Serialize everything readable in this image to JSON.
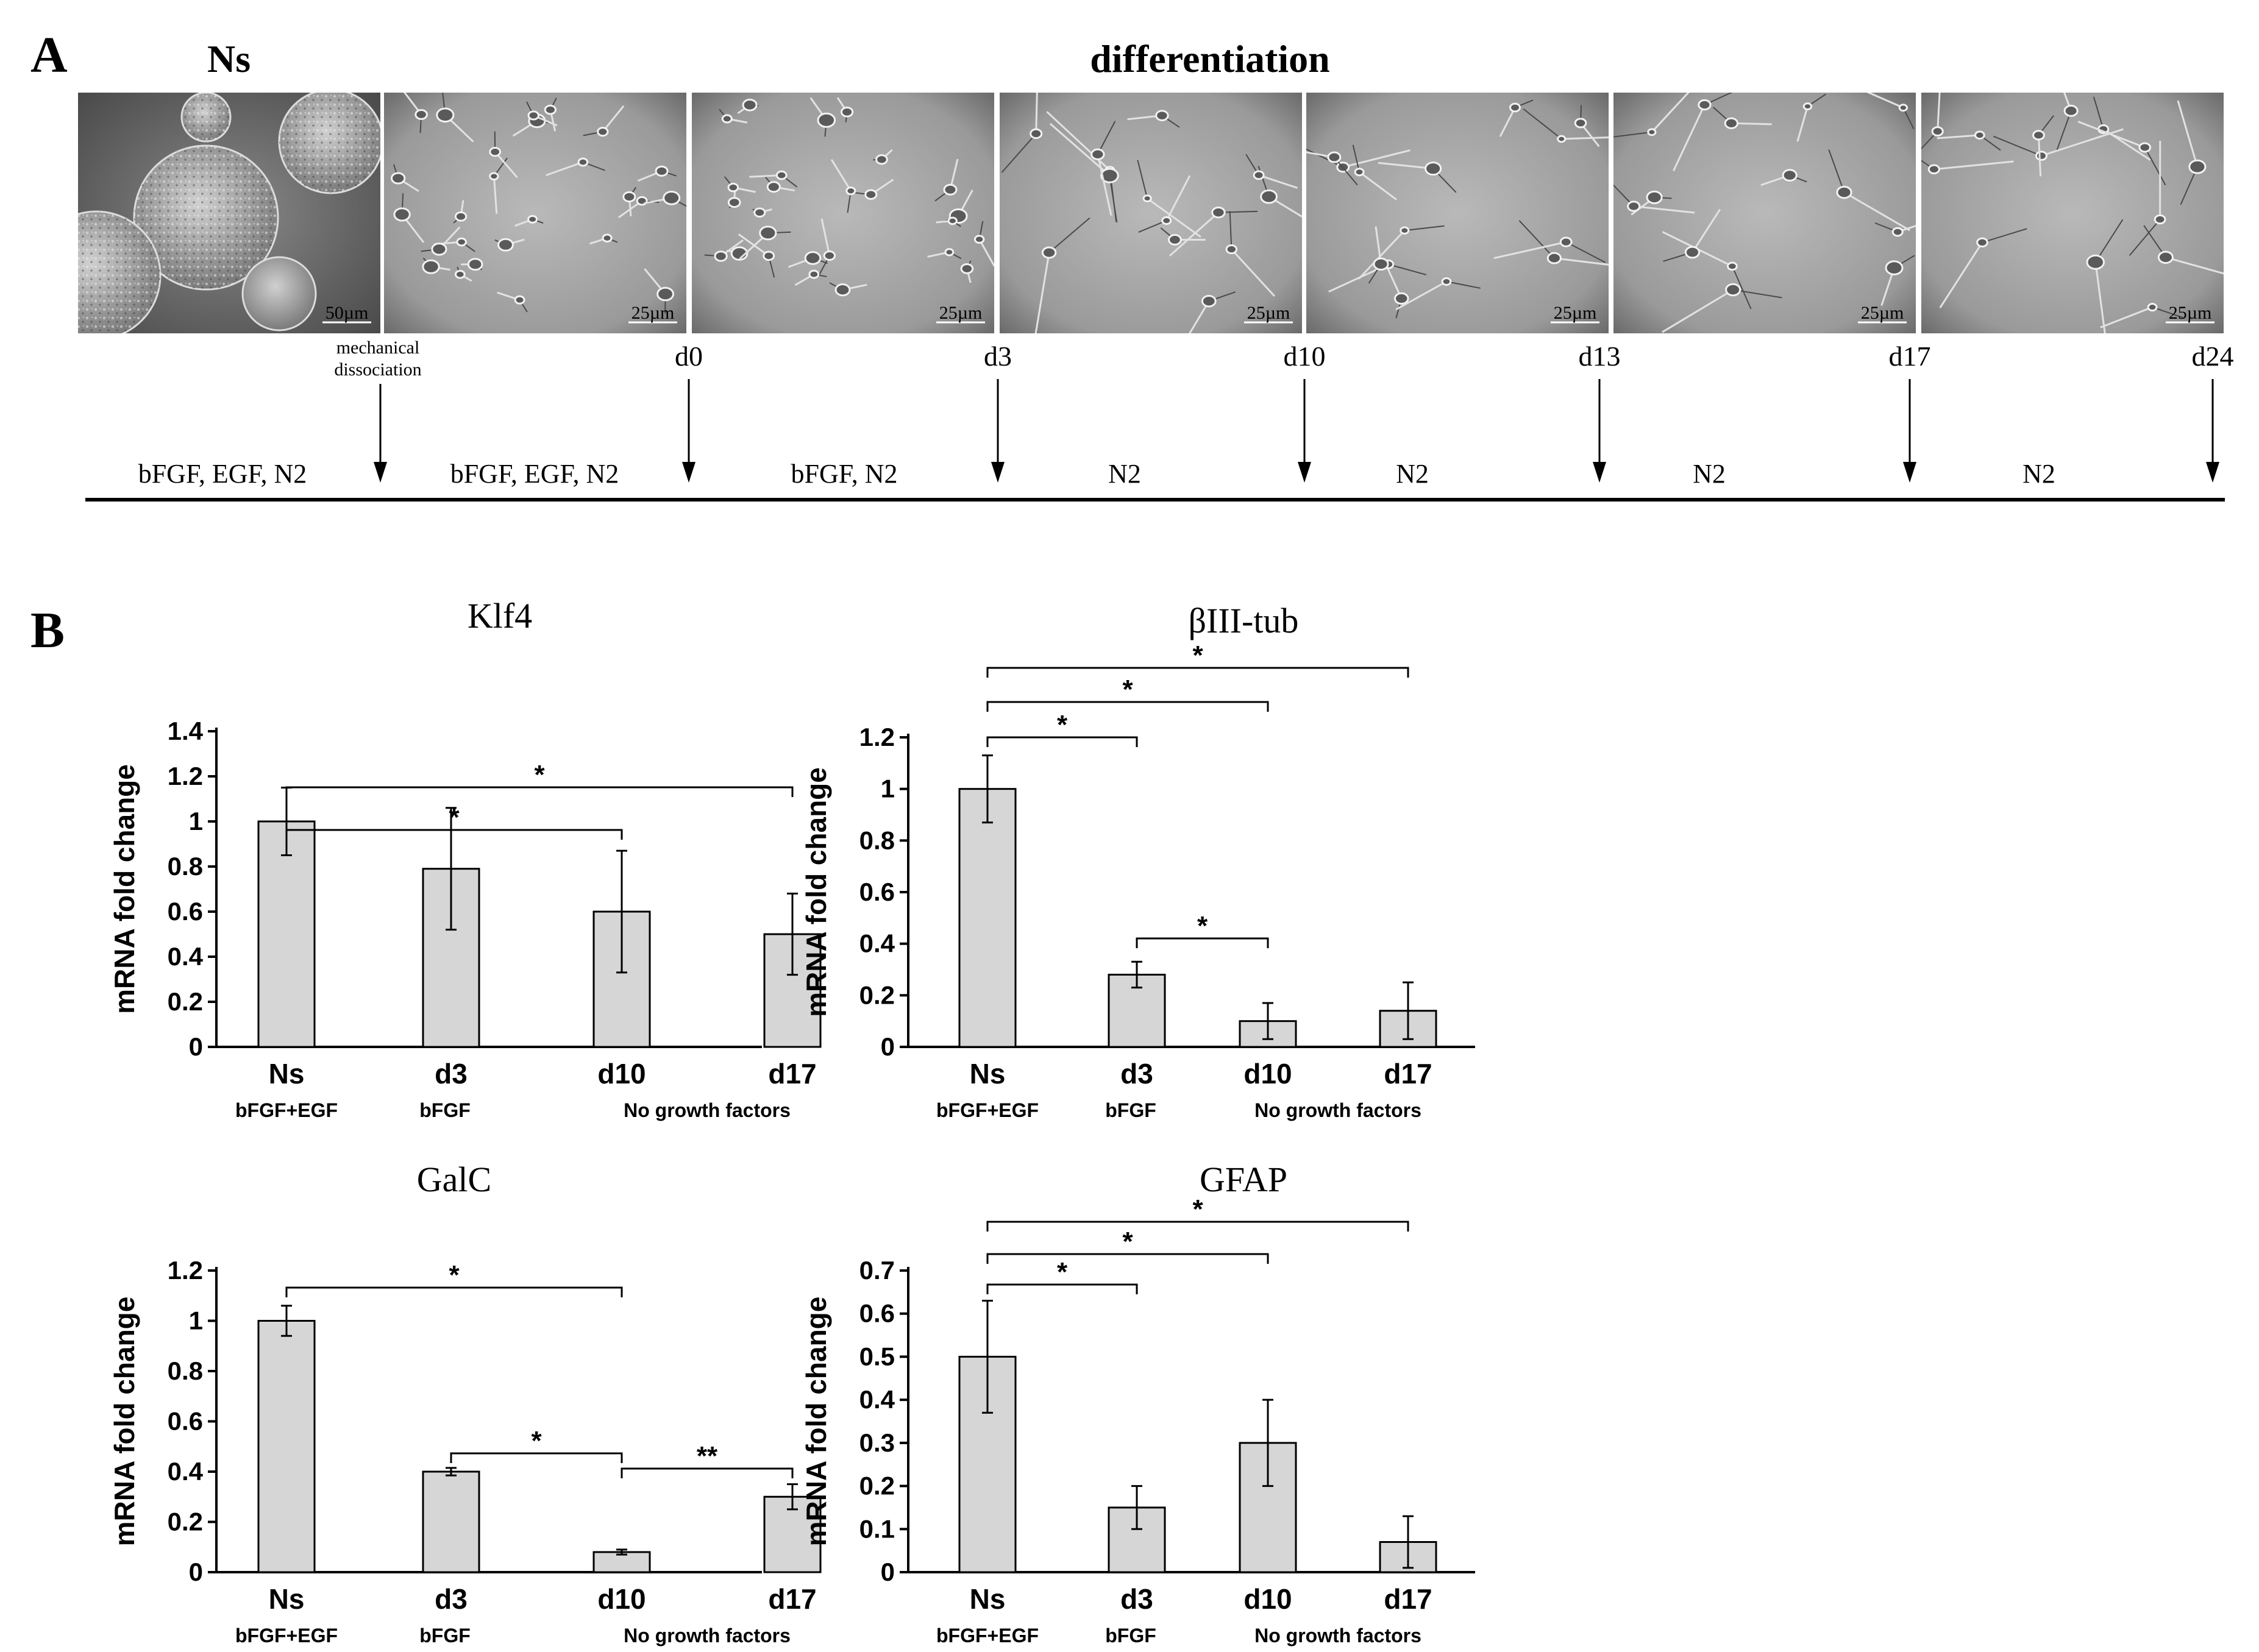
{
  "panel_a": {
    "label": "A",
    "heading_ns": "Ns",
    "heading_differentiation": "differentiation",
    "micrographs": [
      {
        "scale": "50µm"
      },
      {
        "scale": "25µm"
      },
      {
        "scale": "25µm"
      },
      {
        "scale": "25µm"
      },
      {
        "scale": "25µm"
      },
      {
        "scale": "25µm"
      },
      {
        "scale": "25µm"
      }
    ],
    "mechanical_line1": "mechanical",
    "mechanical_line2": "dissociation",
    "days": [
      "d0",
      "d3",
      "d10",
      "d13",
      "d17",
      "d24"
    ],
    "media": [
      "bFGF, EGF, N2",
      "bFGF, EGF, N2",
      "bFGF, N2",
      "N2",
      "N2",
      "N2",
      "N2"
    ]
  },
  "panel_b": {
    "label": "B"
  },
  "chart_data": [
    {
      "type": "bar",
      "title": "Klf4",
      "ylabel": "mRNA fold change",
      "categories": [
        "Ns",
        "d3",
        "d10",
        "d17"
      ],
      "values": [
        1.0,
        0.79,
        0.6,
        0.5
      ],
      "errors": [
        0.15,
        0.27,
        0.27,
        0.18
      ],
      "ylim": [
        0,
        1.4
      ],
      "yticks": [
        "0",
        "0.2",
        "0.4",
        "0.6",
        "0.8",
        "1",
        "1.2",
        "1.4"
      ],
      "conditions": [
        "bFGF+EGF",
        "bFGF",
        "No growth factors"
      ],
      "significance": [
        {
          "from": "Ns",
          "to": "d10",
          "label": "*"
        },
        {
          "from": "Ns",
          "to": "d17",
          "label": "*"
        }
      ]
    },
    {
      "type": "bar",
      "title": "βIII-tub",
      "ylabel": "mRNA fold change",
      "categories": [
        "Ns",
        "d3",
        "d10",
        "d17"
      ],
      "values": [
        1.0,
        0.28,
        0.1,
        0.14
      ],
      "errors": [
        0.13,
        0.05,
        0.07,
        0.11
      ],
      "ylim": [
        0,
        1.2
      ],
      "yticks": [
        "0",
        "0.2",
        "0.4",
        "0.6",
        "0.8",
        "1",
        "1.2"
      ],
      "conditions": [
        "bFGF+EGF",
        "bFGF",
        "No growth factors"
      ],
      "significance": [
        {
          "from": "Ns",
          "to": "d3",
          "label": "*"
        },
        {
          "from": "Ns",
          "to": "d10",
          "label": "*"
        },
        {
          "from": "Ns",
          "to": "d17",
          "label": "*"
        },
        {
          "from": "d3",
          "to": "d10",
          "label": "*"
        }
      ]
    },
    {
      "type": "bar",
      "title": "GalC",
      "ylabel": "mRNA fold change",
      "categories": [
        "Ns",
        "d3",
        "d10",
        "d17"
      ],
      "values": [
        1.0,
        0.4,
        0.08,
        0.3
      ],
      "errors": [
        0.06,
        0.015,
        0.01,
        0.05
      ],
      "ylim": [
        0,
        1.2
      ],
      "yticks": [
        "0",
        "0.2",
        "0.4",
        "0.6",
        "0.8",
        "1",
        "1.2"
      ],
      "conditions": [
        "bFGF+EGF",
        "bFGF",
        "No growth factors"
      ],
      "significance": [
        {
          "from": "Ns",
          "to": "d10",
          "label": "*"
        },
        {
          "from": "d3",
          "to": "d10",
          "label": "*"
        },
        {
          "from": "d10",
          "to": "d17",
          "label": "**"
        }
      ]
    },
    {
      "type": "bar",
      "title": "GFAP",
      "ylabel": "mRNA fold change",
      "categories": [
        "Ns",
        "d3",
        "d10",
        "d17"
      ],
      "values": [
        0.5,
        0.15,
        0.3,
        0.07
      ],
      "errors": [
        0.13,
        0.05,
        0.1,
        0.06
      ],
      "ylim": [
        0,
        0.7
      ],
      "yticks": [
        "0",
        "0.1",
        "0.2",
        "0.3",
        "0.4",
        "0.5",
        "0.6",
        "0.7"
      ],
      "conditions": [
        "bFGF+EGF",
        "bFGF",
        "No growth factors"
      ],
      "significance": [
        {
          "from": "Ns",
          "to": "d3",
          "label": "*"
        },
        {
          "from": "Ns",
          "to": "d10",
          "label": "*"
        },
        {
          "from": "Ns",
          "to": "d17",
          "label": "*"
        }
      ]
    }
  ]
}
